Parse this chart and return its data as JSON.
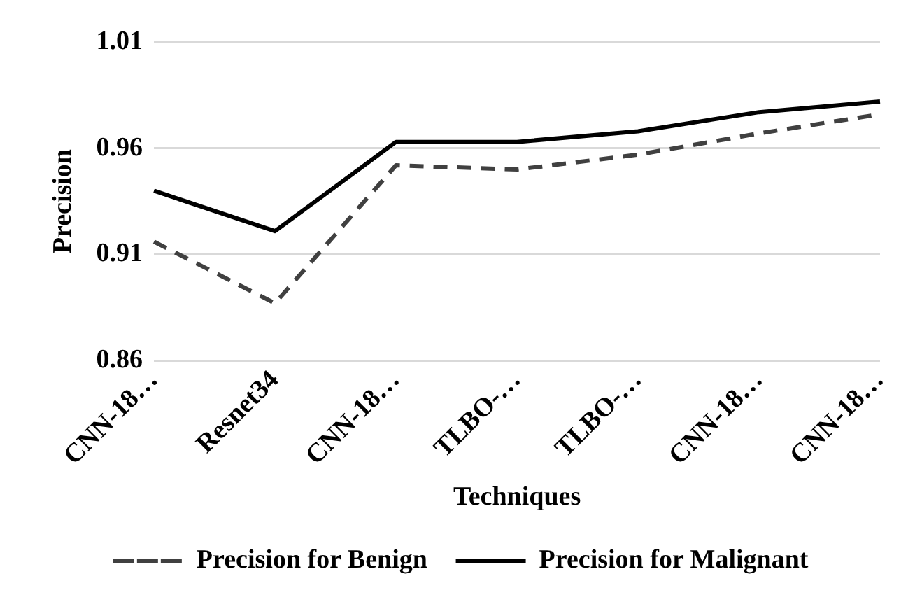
{
  "chart_data": {
    "type": "line",
    "xlabel": "Techniques",
    "ylabel": "Precision",
    "categories": [
      "CNN-18…",
      "Resnet34",
      "CNN-18…",
      "TLBO-…",
      "TLBO-…",
      "CNN-18…",
      "CNN-18…"
    ],
    "series": [
      {
        "name": "Precision for Benign",
        "color": "#404040",
        "line_style": "dashed",
        "values": [
          0.916,
          0.887,
          0.952,
          0.95,
          0.957,
          0.967,
          0.976
        ]
      },
      {
        "name": "Precision for Malignant",
        "color": "#000000",
        "line_style": "solid",
        "values": [
          0.94,
          0.921,
          0.963,
          0.963,
          0.968,
          0.977,
          0.982
        ]
      }
    ],
    "ylim": [
      0.86,
      1.01
    ],
    "yticks": [
      0.86,
      0.91,
      0.96,
      1.01
    ],
    "grid": "y",
    "legend": "bottom",
    "marker": "none"
  }
}
